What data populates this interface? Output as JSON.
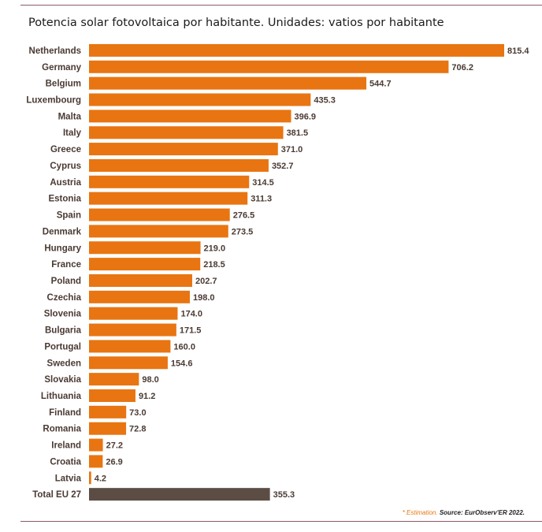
{
  "chart_data": {
    "type": "bar",
    "orientation": "horizontal",
    "title": "Potencia solar fotovoltaica por habitante. Unidades: vatios por habitante",
    "categories": [
      "Netherlands",
      "Germany",
      "Belgium",
      "Luxembourg",
      "Malta",
      "Italy",
      "Greece",
      "Cyprus",
      "Austria",
      "Estonia",
      "Spain",
      "Denmark",
      "Hungary",
      "France",
      "Poland",
      "Czechia",
      "Slovenia",
      "Bulgaria",
      "Portugal",
      "Sweden",
      "Slovakia",
      "Lithuania",
      "Finland",
      "Romania",
      "Ireland",
      "Croatia",
      "Latvia",
      "Total EU 27"
    ],
    "values": [
      815.4,
      706.2,
      544.7,
      435.3,
      396.9,
      381.5,
      371.0,
      352.7,
      314.5,
      311.3,
      276.5,
      273.5,
      219.0,
      218.5,
      202.7,
      198.0,
      174.0,
      171.5,
      160.0,
      154.6,
      98.0,
      91.2,
      73.0,
      72.8,
      27.2,
      26.9,
      4.2,
      355.3
    ],
    "value_labels": [
      "815.4",
      "706.2",
      "544.7",
      "435.3",
      "396.9",
      "381.5",
      "371.0",
      "352.7",
      "314.5",
      "311.3",
      "276.5",
      "273.5",
      "219.0",
      "218.5",
      "202.7",
      "198.0",
      "174.0",
      "171.5",
      "160.0",
      "154.6",
      "98.0",
      "91.2",
      "73.0",
      "72.8",
      "27.2",
      "26.9",
      "4.2",
      "355.3"
    ],
    "colors": {
      "bar": "#e87511",
      "total_bar": "#5c4d44",
      "label": "#4a3a33"
    },
    "xlim": [
      0,
      815.4
    ],
    "grid": false,
    "legend": "none"
  },
  "footnote": {
    "estimation": "* Estimation.",
    "source": "Source: EurObserv'ER 2022."
  }
}
